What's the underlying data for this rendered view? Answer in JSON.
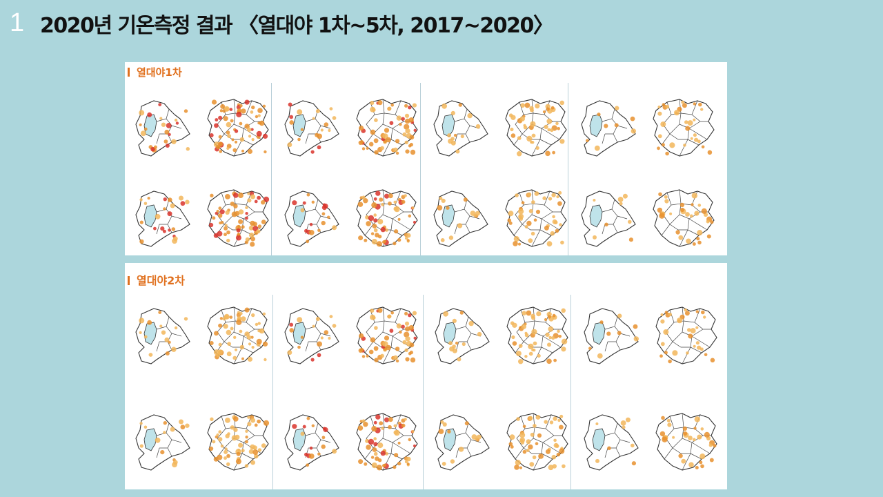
{
  "slide": {
    "number": "1",
    "title": "2020년 기온측정 결과 〈열대야 1차~5차, 2017~2020〉"
  },
  "panels": [
    {
      "label": "열대야1차"
    },
    {
      "label": "열대야2차"
    }
  ],
  "colors": {
    "background": "#acd6dc",
    "label_orange": "#e0701e",
    "river_blue": "#bfe3ea",
    "dot_red": "#d9342b",
    "dot_orange": "#e8902e",
    "dot_yellow": "#f2b65a"
  }
}
